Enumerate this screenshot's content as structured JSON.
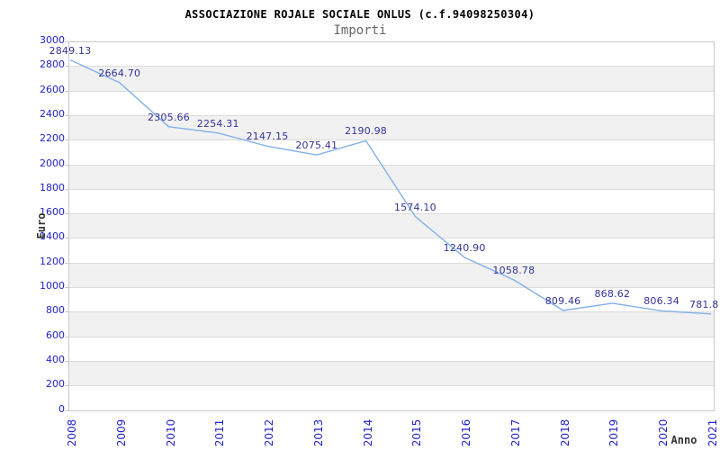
{
  "chart_data": {
    "type": "line",
    "title": "ASSOCIAZIONE ROJALE SOCIALE ONLUS (c.f.94098250304)",
    "subtitle": "Importi",
    "xlabel": "Anno",
    "ylabel": "Euro",
    "categories": [
      "2008",
      "2009",
      "2010",
      "2011",
      "2012",
      "2013",
      "2014",
      "2015",
      "2016",
      "2017",
      "2018",
      "2019",
      "2020",
      "2021"
    ],
    "values": [
      2849.13,
      2664.7,
      2305.66,
      2254.31,
      2147.15,
      2075.41,
      2190.98,
      1574.1,
      1240.9,
      1058.78,
      809.46,
      868.62,
      806.34,
      781.8
    ],
    "point_labels": [
      "2849.13",
      "2664.70",
      "2305.66",
      "2254.31",
      "2147.15",
      "2075.41",
      "2190.98",
      "1574.10",
      "1240.90",
      "1058.78",
      "809.46",
      "868.62",
      "806.34",
      "781.8"
    ],
    "ylim": [
      0,
      3000
    ],
    "ytick_step": 200,
    "grid": "horizontal-bands-alternating",
    "legend": "none",
    "colors": {
      "line": "#82b1e8",
      "tick_label": "#2222cc",
      "point_label": "#333399",
      "band_gray": "#f1f1f1",
      "gridline": "#dcdcdc",
      "plot_border": "#c8c8c8",
      "title": "#000000",
      "subtitle": "#666666",
      "axis_title": "#333333",
      "background": "#ffffff"
    }
  }
}
